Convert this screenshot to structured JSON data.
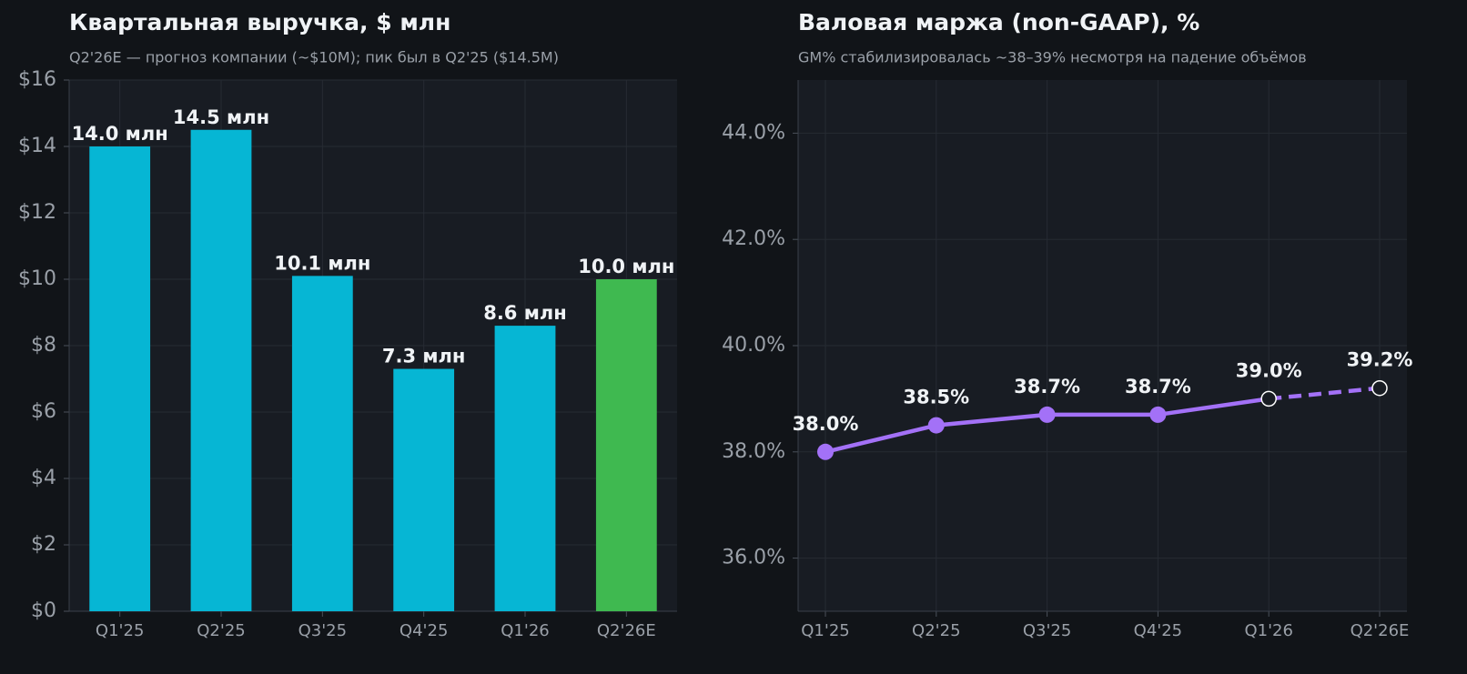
{
  "chart_data": [
    {
      "type": "bar",
      "title": "Квартальная выручка, $ млн",
      "subtitle": "Q2'26E — прогноз компании (~$10M); пик был в Q2'25 ($14.5M)",
      "categories": [
        "Q1'25",
        "Q2'25",
        "Q3'25",
        "Q4'25",
        "Q1'26",
        "Q2'26E"
      ],
      "values": [
        14.0,
        14.5,
        10.1,
        7.3,
        8.6,
        10.0
      ],
      "value_labels": [
        "14.0 млн",
        "14.5 млн",
        "10.1 млн",
        "7.3 млн",
        "8.6 млн",
        "10.0 млн"
      ],
      "colors": [
        "#06b6d4",
        "#06b6d4",
        "#06b6d4",
        "#06b6d4",
        "#06b6d4",
        "#3fb950"
      ],
      "ylim": [
        0,
        16
      ],
      "yticks": [
        {
          "value": 0,
          "label": "$0"
        },
        {
          "value": 2,
          "label": "$2"
        },
        {
          "value": 4,
          "label": "$4"
        },
        {
          "value": 6,
          "label": "$6"
        },
        {
          "value": 8,
          "label": "$8"
        },
        {
          "value": 10,
          "label": "$10"
        },
        {
          "value": 12,
          "label": "$12"
        },
        {
          "value": 14,
          "label": "$14"
        },
        {
          "value": 16,
          "label": "$16"
        }
      ],
      "grid": true
    },
    {
      "type": "line",
      "title": "Валовая маржа (non-GAAP), %",
      "subtitle": "GM% стабилизировалась ~38–39% несмотря на падение объёмов",
      "categories": [
        "Q1'25",
        "Q2'25",
        "Q3'25",
        "Q4'25",
        "Q1'26",
        "Q2'26E"
      ],
      "values": [
        38.0,
        38.5,
        38.7,
        38.7,
        39.0,
        39.2
      ],
      "value_labels": [
        "38.0%",
        "38.5%",
        "38.7%",
        "38.7%",
        "39.0%",
        "39.2%"
      ],
      "color": "#a371f7",
      "markers": [
        "filled",
        "filled",
        "filled",
        "filled",
        "hollow",
        "hollow"
      ],
      "line_styles": [
        "solid",
        "solid",
        "solid",
        "solid",
        "dashed"
      ],
      "ylim": [
        35,
        45
      ],
      "yticks": [
        {
          "value": 36,
          "label": "36.0%"
        },
        {
          "value": 38,
          "label": "38.0%"
        },
        {
          "value": 40,
          "label": "40.0%"
        },
        {
          "value": 42,
          "label": "42.0%"
        },
        {
          "value": 44,
          "label": "44.0%"
        }
      ],
      "grid": true
    }
  ]
}
